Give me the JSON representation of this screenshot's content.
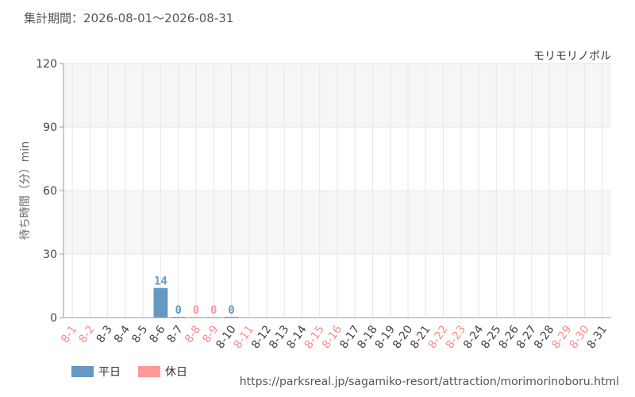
{
  "header": {
    "period": "集計期間：2026-08-01～2026-08-31",
    "attraction": "モリモリノボル"
  },
  "chart_data": {
    "type": "bar",
    "ylabel": "待ち時間（分）min",
    "ylim": [
      0,
      120
    ],
    "yticks": [
      "0",
      "30",
      "60",
      "90",
      "120"
    ],
    "categories": [
      "8-1",
      "8-2",
      "8-3",
      "8-4",
      "8-5",
      "8-6",
      "8-7",
      "8-8",
      "8-9",
      "8-10",
      "8-11",
      "8-12",
      "8-13",
      "8-14",
      "8-15",
      "8-16",
      "8-17",
      "8-18",
      "8-19",
      "8-20",
      "8-21",
      "8-22",
      "8-23",
      "8-24",
      "8-25",
      "8-26",
      "8-27",
      "8-28",
      "8-29",
      "8-30",
      "8-31"
    ],
    "holidays": [
      0,
      1,
      7,
      8,
      10,
      14,
      15,
      21,
      22,
      28,
      29
    ],
    "series": [
      {
        "name": "平日",
        "color": "#6699c2",
        "values": [
          null,
          null,
          null,
          null,
          null,
          14,
          0,
          null,
          null,
          0,
          null,
          null,
          null,
          null,
          null,
          null,
          null,
          null,
          null,
          null,
          null,
          null,
          null,
          null,
          null,
          null,
          null,
          null,
          null,
          null,
          null
        ]
      },
      {
        "name": "休日",
        "color": "#ff9999",
        "values": [
          null,
          null,
          null,
          null,
          null,
          null,
          null,
          0,
          0,
          null,
          null,
          null,
          null,
          null,
          null,
          null,
          null,
          null,
          null,
          null,
          null,
          null,
          null,
          null,
          null,
          null,
          null,
          null,
          null,
          null,
          null
        ]
      }
    ],
    "grid": true
  },
  "legend": {
    "weekday_label": "平日",
    "holiday_label": "休日",
    "weekday_color": "#6699c2",
    "holiday_color": "#ff9999"
  },
  "source": "https://parksreal.jp/sagamiko-resort/attraction/morimorinoboru.html"
}
